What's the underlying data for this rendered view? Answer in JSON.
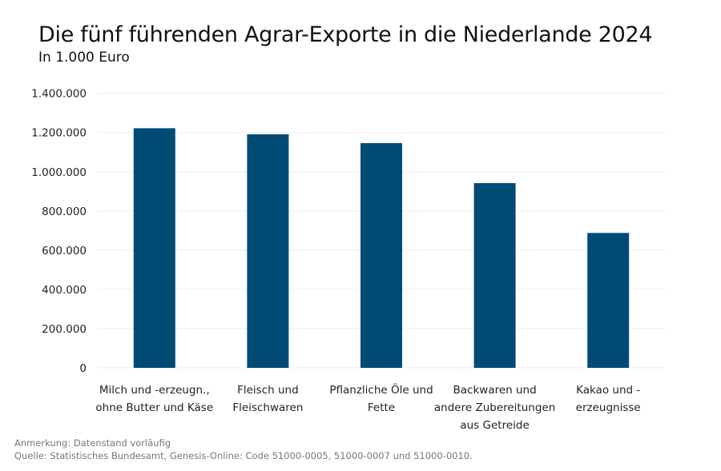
{
  "chart_data": {
    "type": "bar",
    "title": "Die fünf führenden Agrar-Exporte in die Niederlande 2024",
    "subtitle": "In 1.000 Euro",
    "categories": [
      [
        "Milch und -erzeugn.,",
        "ohne Butter und Käse"
      ],
      [
        "Fleisch und",
        "Fleischwaren"
      ],
      [
        "Pflanzliche Öle und",
        "Fette"
      ],
      [
        "Backwaren und",
        "andere Zubereitungen",
        "aus Getreide"
      ],
      [
        "Kakao und -",
        "erzeugnisse"
      ]
    ],
    "values": [
      1222000,
      1191000,
      1146000,
      942000,
      688000
    ],
    "ylim": [
      0,
      1400000
    ],
    "yticks": [
      0,
      200000,
      400000,
      600000,
      800000,
      1000000,
      1200000,
      1400000
    ],
    "ytick_labels": [
      "0",
      "200.000",
      "400.000",
      "600.000",
      "800.000",
      "1.000.000",
      "1.200.000",
      "1.400.000"
    ],
    "grid": true,
    "bar_color": "#004b76",
    "grid_color": "#eeeeee"
  },
  "footer": {
    "note": "Anmerkung: Datenstand vorläufig",
    "source": "Quelle: Statistisches Bundesamt, Genesis-Online: Code 51000-0005, 51000-0007 und 51000-0010."
  }
}
